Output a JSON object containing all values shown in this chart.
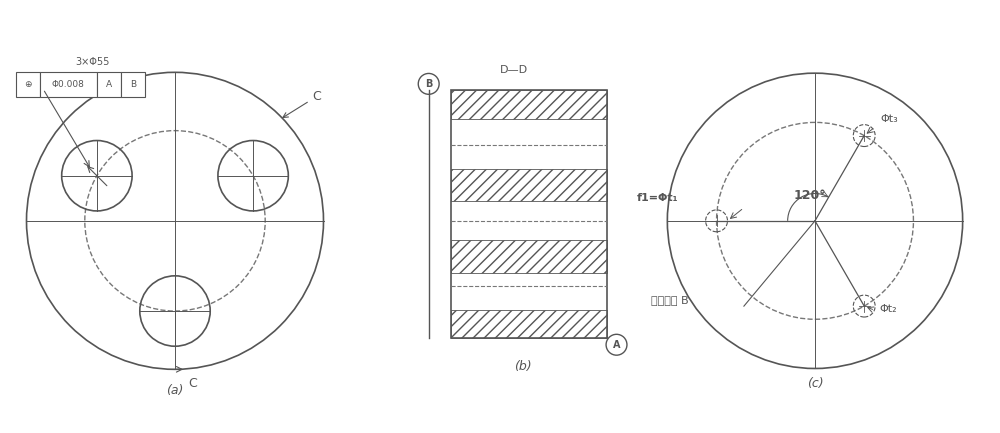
{
  "fig_width": 10.0,
  "fig_height": 4.33,
  "bg_color": "#ffffff",
  "line_color": "#555555",
  "dashed_color": "#777777",
  "label_a": "(a)",
  "label_b": "(b)",
  "label_c": "(c)",
  "annotation_3xPhi55": "3×Φ55",
  "annotation_tol": "Φ0.008",
  "annotation_A": "A",
  "annotation_B": "B",
  "annotation_C": "C",
  "annotation_D": "D",
  "angle_label": "120°",
  "ft1_label": "f1=Φt₁",
  "ft2_label": "Φt₂",
  "ft3_label": "Φt₃",
  "baseline_label": "基准轴线 B"
}
